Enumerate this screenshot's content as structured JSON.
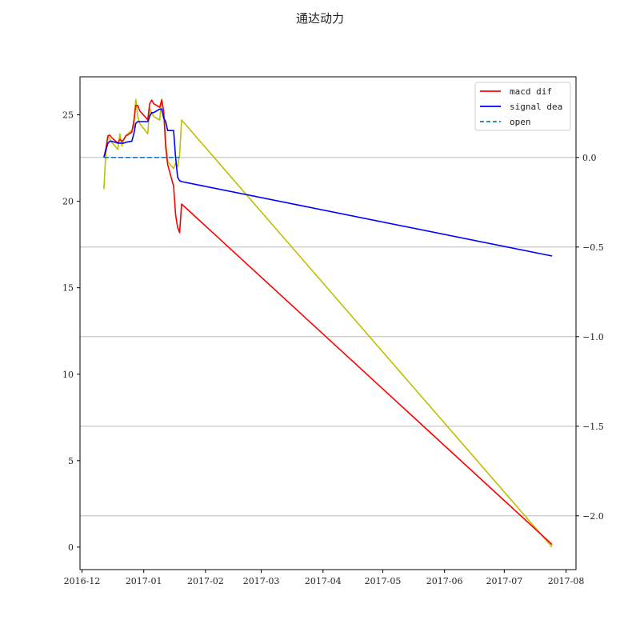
{
  "chart_data": {
    "type": "line",
    "title": "通达动力",
    "x_axis": {
      "ticks": [
        "2016-12",
        "2017-01",
        "2017-02",
        "2017-03",
        "2017-04",
        "2017-05",
        "2017-06",
        "2017-07",
        "2017-08"
      ],
      "range": [
        "2016-11-30",
        "2017-08-06"
      ]
    },
    "left_axis": {
      "ticks": [
        "0",
        "5",
        "10",
        "15",
        "20",
        "25"
      ],
      "ylim": [
        -1.3,
        27.2
      ]
    },
    "right_axis": {
      "ticks": [
        "0.0",
        "−0.5",
        "−1.0",
        "−1.5",
        "−2.0"
      ],
      "ylim": [
        -2.3,
        0.45
      ],
      "grid": true
    },
    "legend": {
      "placement": "top-right",
      "entries": [
        {
          "label": "macd dif",
          "color": "#ff0000",
          "dash": false
        },
        {
          "label": "signal dea",
          "color": "#0000ff",
          "dash": false
        },
        {
          "label": "open",
          "color": "#1f77b4",
          "dash": true
        }
      ]
    },
    "series": [
      {
        "name": "",
        "axis": "left",
        "color": "#bfbf00",
        "points": [
          [
            "2016-12-12",
            20.7
          ],
          [
            "2016-12-13",
            22.9
          ],
          [
            "2016-12-14",
            23.8
          ],
          [
            "2016-12-15",
            23.6
          ],
          [
            "2016-12-16",
            23.4
          ],
          [
            "2016-12-19",
            23.0
          ],
          [
            "2016-12-20",
            23.9
          ],
          [
            "2016-12-21",
            23.2
          ],
          [
            "2016-12-22",
            23.6
          ],
          [
            "2016-12-23",
            23.8
          ],
          [
            "2016-12-26",
            24.1
          ],
          [
            "2016-12-27",
            24.3
          ],
          [
            "2016-12-28",
            25.9
          ],
          [
            "2016-12-29",
            24.9
          ],
          [
            "2016-12-30",
            24.5
          ],
          [
            "2017-01-03",
            23.9
          ],
          [
            "2017-01-04",
            25.4
          ],
          [
            "2017-01-05",
            25.1
          ],
          [
            "2017-01-06",
            24.9
          ],
          [
            "2017-01-09",
            24.7
          ],
          [
            "2017-01-10",
            25.9
          ],
          [
            "2017-01-11",
            25.2
          ],
          [
            "2017-01-12",
            23.4
          ],
          [
            "2017-01-13",
            22.3
          ],
          [
            "2017-01-16",
            21.9
          ],
          [
            "2017-01-17",
            22.2
          ],
          [
            "2017-01-18",
            22.0
          ],
          [
            "2017-01-19",
            22.7
          ],
          [
            "2017-01-20",
            24.7
          ],
          [
            "2017-07-25",
            0.0
          ]
        ]
      },
      {
        "name": "macd dif",
        "axis": "right",
        "color": "#ff0000",
        "points": [
          [
            "2016-12-12",
            0.0
          ],
          [
            "2016-12-13",
            0.05
          ],
          [
            "2016-12-14",
            0.12
          ],
          [
            "2016-12-15",
            0.125
          ],
          [
            "2016-12-16",
            0.11
          ],
          [
            "2016-12-19",
            0.08
          ],
          [
            "2016-12-20",
            0.1
          ],
          [
            "2016-12-21",
            0.09
          ],
          [
            "2016-12-22",
            0.1
          ],
          [
            "2016-12-23",
            0.12
          ],
          [
            "2016-12-26",
            0.14
          ],
          [
            "2016-12-27",
            0.2
          ],
          [
            "2016-12-28",
            0.29
          ],
          [
            "2016-12-29",
            0.29
          ],
          [
            "2016-12-30",
            0.26
          ],
          [
            "2017-01-03",
            0.21
          ],
          [
            "2017-01-04",
            0.3
          ],
          [
            "2017-01-05",
            0.32
          ],
          [
            "2017-01-06",
            0.3
          ],
          [
            "2017-01-09",
            0.28
          ],
          [
            "2017-01-10",
            0.32
          ],
          [
            "2017-01-11",
            0.26
          ],
          [
            "2017-01-12",
            0.06
          ],
          [
            "2017-01-13",
            -0.04
          ],
          [
            "2017-01-16",
            -0.16
          ],
          [
            "2017-01-17",
            -0.32
          ],
          [
            "2017-01-18",
            -0.39
          ],
          [
            "2017-01-19",
            -0.42
          ],
          [
            "2017-01-20",
            -0.26
          ],
          [
            "2017-07-25",
            -2.16
          ]
        ]
      },
      {
        "name": "signal dea",
        "axis": "right",
        "color": "#0000ff",
        "points": [
          [
            "2016-12-12",
            0.0
          ],
          [
            "2016-12-13",
            0.04
          ],
          [
            "2016-12-14",
            0.08
          ],
          [
            "2016-12-15",
            0.09
          ],
          [
            "2016-12-16",
            0.09
          ],
          [
            "2016-12-19",
            0.08
          ],
          [
            "2016-12-20",
            0.08
          ],
          [
            "2016-12-21",
            0.08
          ],
          [
            "2016-12-22",
            0.08
          ],
          [
            "2016-12-23",
            0.085
          ],
          [
            "2016-12-26",
            0.09
          ],
          [
            "2016-12-27",
            0.13
          ],
          [
            "2016-12-28",
            0.19
          ],
          [
            "2016-12-29",
            0.2
          ],
          [
            "2016-12-30",
            0.2
          ],
          [
            "2017-01-03",
            0.2
          ],
          [
            "2017-01-04",
            0.23
          ],
          [
            "2017-01-05",
            0.25
          ],
          [
            "2017-01-06",
            0.25
          ],
          [
            "2017-01-09",
            0.27
          ],
          [
            "2017-01-10",
            0.27
          ],
          [
            "2017-01-11",
            0.22
          ],
          [
            "2017-01-12",
            0.2
          ],
          [
            "2017-01-13",
            0.15
          ],
          [
            "2017-01-16",
            0.15
          ],
          [
            "2017-01-17",
            0.0
          ],
          [
            "2017-01-18",
            -0.11
          ],
          [
            "2017-01-19",
            -0.13
          ],
          [
            "2017-01-20",
            -0.135
          ],
          [
            "2017-07-25",
            -0.55
          ]
        ]
      },
      {
        "name": "open",
        "axis": "right",
        "color": "#1f77b4",
        "dash": true,
        "points": [
          [
            "2016-12-12",
            0.0
          ],
          [
            "2017-01-19",
            0.0
          ]
        ]
      }
    ]
  }
}
